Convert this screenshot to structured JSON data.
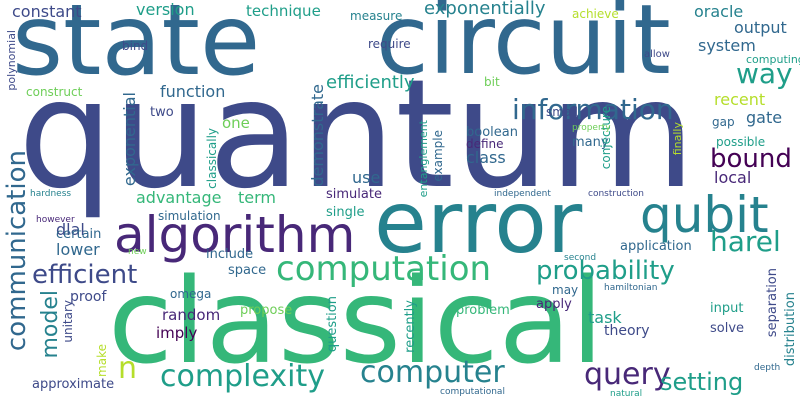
{
  "words": {
    "quantum": "quantum",
    "classical": "classical",
    "state": "state",
    "circuit": "circuit",
    "error": "error",
    "algorithm": "algorithm",
    "qubit": "qubit",
    "computation": "computation",
    "probability": "probability",
    "information": "information",
    "way": "way",
    "bound": "bound",
    "harel": "harel",
    "complexity": "complexity",
    "computer": "computer",
    "query": "query",
    "setting": "setting",
    "efficient": "efficient",
    "communication": "communication",
    "model": "model",
    "n": "n",
    "efficiently": "efficiently",
    "exponentially": "exponentially",
    "version": "version",
    "technique": "technique",
    "constant": "constant",
    "oracle": "oracle",
    "output": "output",
    "system": "system",
    "function": "function",
    "demonstrate": "demonstrate",
    "recent": "recent",
    "gate": "gate",
    "local": "local",
    "class": "class",
    "advantage": "advantage",
    "term": "term",
    "exponential": "exponential",
    "dlal": "dlal",
    "lower": "lower",
    "random": "random",
    "imply": "imply",
    "proof": "proof",
    "omega": "omega",
    "task": "task",
    "theory": "theory",
    "apply": "apply",
    "may": "may",
    "input": "input",
    "solve": "solve",
    "separation": "separation",
    "distribution": "distribution",
    "problem": "problem",
    "question": "question",
    "recently": "recently",
    "propose": "propose",
    "unitary": "unitary",
    "make": "make",
    "approximate": "approximate",
    "space": "space",
    "include": "include",
    "application": "application",
    "simulation": "simulation",
    "certain": "certain",
    "use": "use",
    "simulate": "simulate",
    "single": "single",
    "boolean": "boolean",
    "define": "define",
    "many": "many",
    "conjecture": "conjecture",
    "example": "example",
    "entanglement": "entanglement",
    "one": "one",
    "two": "two",
    "classically": "classically",
    "construct": "construct",
    "polynomial": "polynomial",
    "bind": "bind",
    "measure": "measure",
    "require": "require",
    "achieve": "achieve",
    "allow": "allow",
    "computing": "computing",
    "bit": "bit",
    "small": "small",
    "property": "property",
    "finally": "finally",
    "gap": "gap",
    "possible": "possible",
    "hardness": "hardness",
    "however": "however",
    "new": "new",
    "independent": "independent",
    "construction": "construction",
    "second": "second",
    "hamiltonian": "hamiltonian",
    "depth": "depth",
    "computational": "computational",
    "natural": "natural"
  }
}
